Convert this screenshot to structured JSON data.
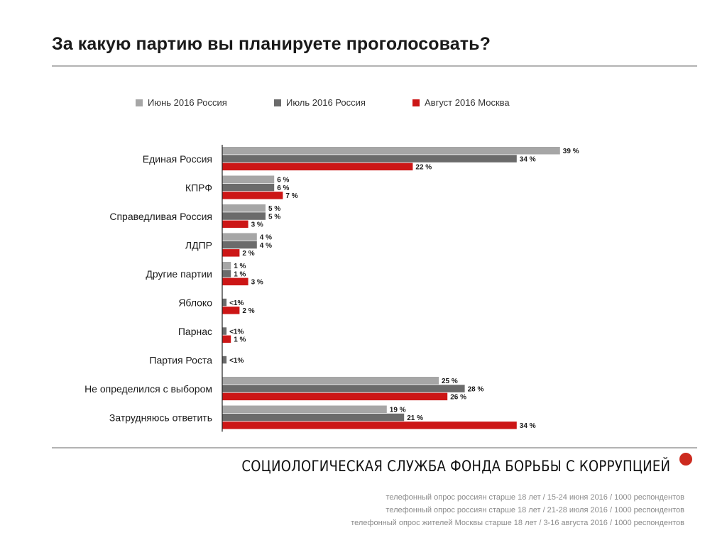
{
  "title": "За какую партию вы планируете проголосовать?",
  "legend": [
    {
      "label": "Июнь 2016 Россия",
      "color": "#a6a6a6"
    },
    {
      "label": "Июль 2016 Россия",
      "color": "#6b6b6b"
    },
    {
      "label": "Август 2016 Москва",
      "color": "#cc1616"
    }
  ],
  "chart_data": {
    "type": "bar",
    "orientation": "horizontal",
    "title": "За какую партию вы планируете проголосовать?",
    "categories": [
      "Единая Россия",
      "КПРФ",
      "Справедливая Россия",
      "ЛДПР",
      "Другие партии",
      "Яблоко",
      "Парнас",
      "Партия Роста",
      "Не определился с выбором",
      "Затрудняюсь ответить"
    ],
    "series": [
      {
        "name": "Июнь 2016 Россия",
        "color": "#a6a6a6",
        "values": [
          39,
          6,
          5,
          4,
          1,
          null,
          null,
          null,
          25,
          19
        ],
        "labels": [
          "39 %",
          "6 %",
          "5 %",
          "4 %",
          "1 %",
          null,
          null,
          null,
          "25 %",
          "19 %"
        ]
      },
      {
        "name": "Июль 2016 Россия",
        "color": "#6b6b6b",
        "values": [
          34,
          6,
          5,
          4,
          1,
          0.5,
          0.5,
          0.5,
          28,
          21
        ],
        "labels": [
          "34 %",
          "6 %",
          "5 %",
          "4 %",
          "1 %",
          "<1%",
          "<1%",
          "<1%",
          "28 %",
          "21 %"
        ]
      },
      {
        "name": "Август 2016 Москва",
        "color": "#cc1616",
        "values": [
          22,
          7,
          3,
          2,
          3,
          2,
          1,
          null,
          26,
          34
        ],
        "labels": [
          "22 %",
          "7 %",
          "3 %",
          "2 %",
          "3 %",
          "2 %",
          "1 %",
          null,
          "26 %",
          "34 %"
        ]
      }
    ],
    "xlabel": "",
    "ylabel": "",
    "xlim": [
      0,
      40
    ],
    "grid": false,
    "legend_position": "top"
  },
  "footer": {
    "org": "СОЦИОЛОГИЧЕСКАЯ СЛУЖБА ФОНДА БОРЬБЫ С КОРРУПЦИЕЙ",
    "notes": [
      "телефонный опрос россиян старше 18 лет / 15-24 июня 2016 / 1000 респондентов",
      "телефонный опрос россиян старше 18 лет / 21-28 июля 2016 / 1000 респондентов",
      "телефонный опрос жителей Москвы старше 18 лет / 3-16 августа 2016 / 1000 респондентов"
    ]
  }
}
